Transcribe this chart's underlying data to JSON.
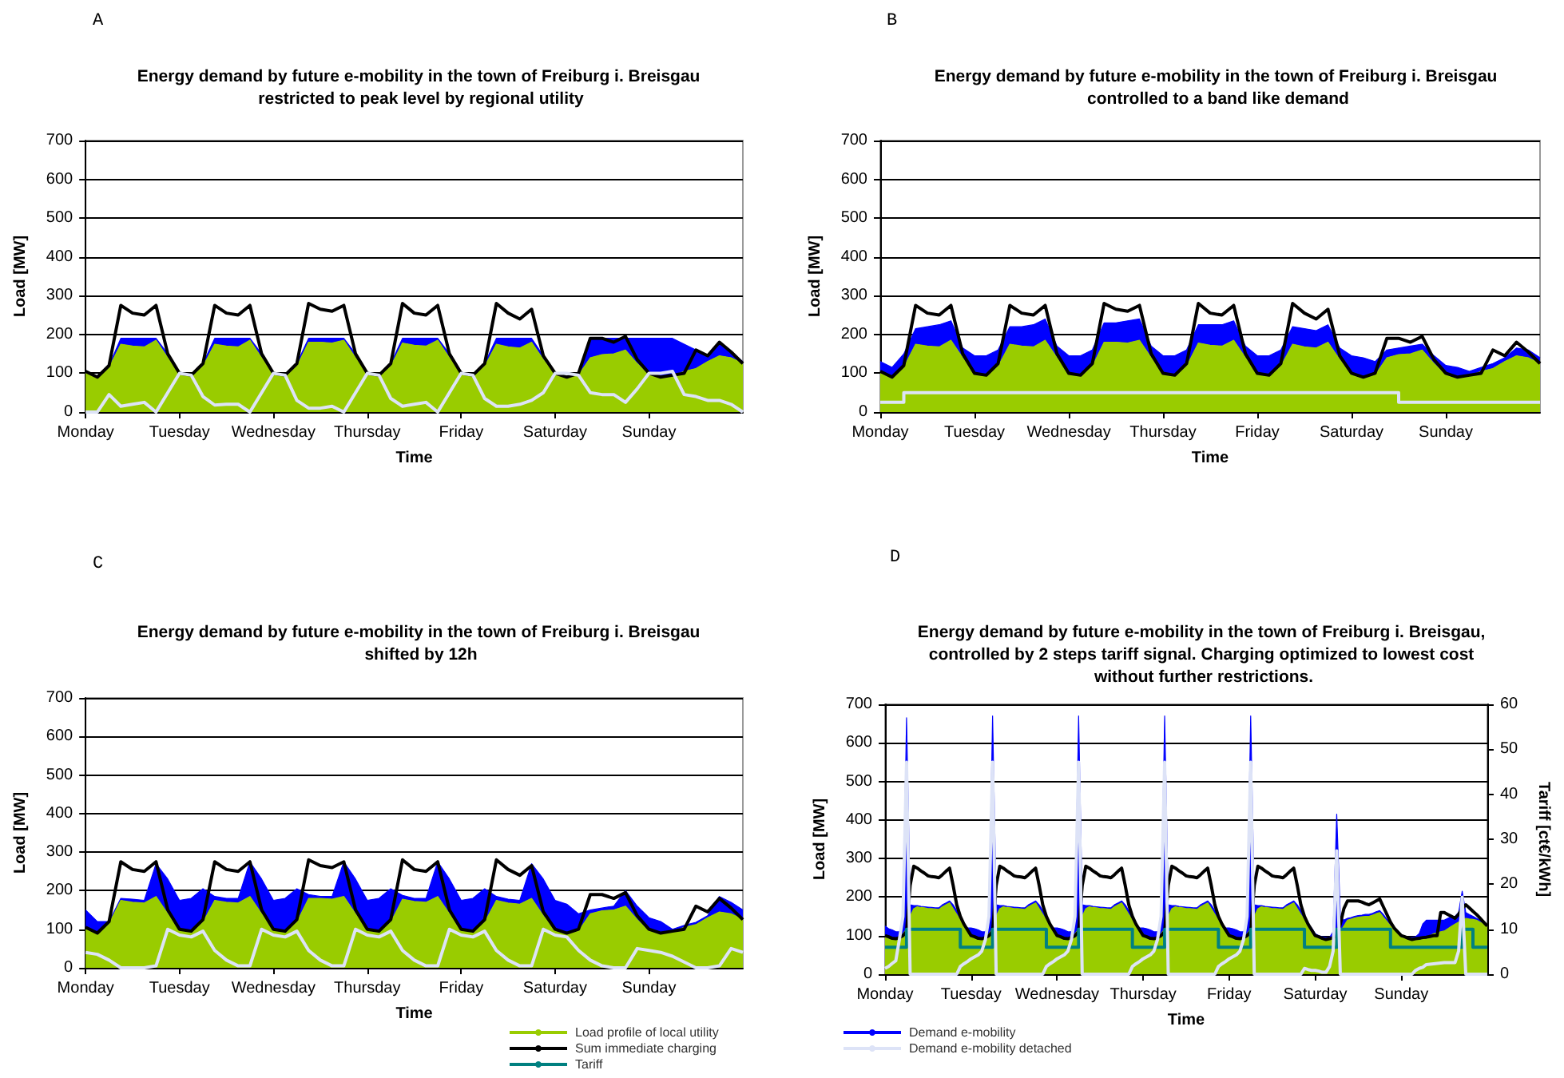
{
  "chart_data": [
    {
      "type": "area",
      "title": "Energy demand by future e-mobility in the town of Freiburg i. Breisgau restricted to peak level by regional utility",
      "xlabel": "Time",
      "ylabel": "Load [MW]",
      "annotations": [
        "A"
      ],
      "stacked": true,
      "grid": "y",
      "marker": "none",
      "ylim": [
        0,
        700
      ],
      "yticks": [
        0,
        100,
        200,
        300,
        400,
        500,
        600,
        700
      ],
      "categories": [
        "Monday",
        null,
        null,
        null,
        null,
        null,
        null,
        null,
        "Tuesday",
        null,
        null,
        null,
        null,
        null,
        null,
        null,
        "Wednesday",
        null,
        null,
        null,
        null,
        null,
        null,
        null,
        "Thursday",
        null,
        null,
        null,
        null,
        null,
        null,
        null,
        "Friday",
        null,
        null,
        null,
        null,
        null,
        null,
        null,
        "Saturday",
        null,
        null,
        null,
        null,
        null,
        null,
        null,
        "Sunday",
        null,
        null,
        null,
        null,
        null,
        null,
        null,
        null
      ],
      "series": [
        {
          "color": "#99cc00",
          "values": [
            100,
            90,
            115,
            175,
            170,
            168,
            185,
            140,
            100,
            92,
            118,
            175,
            170,
            168,
            185,
            140,
            100,
            92,
            118,
            180,
            180,
            178,
            185,
            140,
            100,
            92,
            118,
            178,
            172,
            170,
            185,
            140,
            100,
            92,
            118,
            175,
            168,
            165,
            180,
            135,
            98,
            90,
            95,
            140,
            148,
            150,
            160,
            125,
            95,
            90,
            92,
            105,
            112,
            130,
            145,
            140,
            125
          ]
        },
        {
          "type": "area",
          "color": "#0000ff",
          "values": [
            0,
            0,
            5,
            15,
            20,
            22,
            5,
            10,
            0,
            3,
            7,
            15,
            20,
            22,
            5,
            10,
            0,
            3,
            7,
            10,
            10,
            12,
            5,
            10,
            0,
            3,
            7,
            12,
            18,
            20,
            5,
            10,
            0,
            3,
            7,
            15,
            22,
            25,
            10,
            10,
            2,
            0,
            5,
            50,
            42,
            40,
            30,
            65,
            95,
            100,
            98,
            70,
            48,
            15,
            35,
            15,
            5
          ]
        },
        {
          "type": "line",
          "color": "#000000",
          "values": [
            105,
            90,
            120,
            275,
            255,
            250,
            275,
            150,
            100,
            95,
            125,
            275,
            255,
            250,
            275,
            150,
            100,
            95,
            125,
            280,
            265,
            260,
            275,
            150,
            100,
            95,
            125,
            280,
            255,
            250,
            275,
            150,
            100,
            95,
            125,
            280,
            255,
            240,
            265,
            145,
            100,
            90,
            100,
            190,
            190,
            180,
            195,
            135,
            100,
            90,
            95,
            100,
            160,
            145,
            180,
            155,
            125
          ]
        },
        {
          "type": "line",
          "color": "#dde3f7",
          "values": [
            0,
            0,
            45,
            15,
            20,
            25,
            0,
            50,
            100,
            95,
            40,
            18,
            20,
            20,
            0,
            50,
            100,
            95,
            30,
            10,
            10,
            15,
            0,
            50,
            100,
            95,
            35,
            15,
            20,
            25,
            0,
            50,
            100,
            95,
            35,
            15,
            15,
            20,
            30,
            50,
            100,
            100,
            95,
            50,
            45,
            45,
            25,
            60,
            100,
            100,
            105,
            45,
            40,
            30,
            30,
            20,
            0
          ]
        }
      ]
    },
    {
      "type": "area",
      "title": "Energy demand by future e-mobility in the town of Freiburg i. Breisgau controlled to a band like demand",
      "xlabel": "Time",
      "ylabel": "Load [MW]",
      "annotations": [
        "B"
      ],
      "stacked": true,
      "grid": "y",
      "marker": "none",
      "ylim": [
        0,
        700
      ],
      "yticks": [
        0,
        100,
        200,
        300,
        400,
        500,
        600,
        700
      ],
      "categories": [
        "Monday",
        null,
        null,
        null,
        null,
        null,
        null,
        null,
        "Tuesday",
        null,
        null,
        null,
        null,
        null,
        null,
        null,
        "Wednesday",
        null,
        null,
        null,
        null,
        null,
        null,
        null,
        "Thursday",
        null,
        null,
        null,
        null,
        null,
        null,
        null,
        "Friday",
        null,
        null,
        null,
        null,
        null,
        null,
        null,
        "Saturday",
        null,
        null,
        null,
        null,
        null,
        null,
        null,
        "Sunday",
        null,
        null,
        null,
        null,
        null,
        null,
        null,
        null
      ],
      "series": [
        {
          "color": "#99cc00",
          "values": [
            100,
            90,
            115,
            175,
            170,
            168,
            185,
            140,
            100,
            92,
            118,
            175,
            170,
            168,
            185,
            140,
            100,
            92,
            118,
            180,
            180,
            178,
            185,
            140,
            100,
            92,
            118,
            178,
            172,
            170,
            185,
            140,
            100,
            92,
            118,
            175,
            168,
            165,
            180,
            135,
            98,
            90,
            95,
            140,
            148,
            150,
            160,
            125,
            95,
            90,
            92,
            105,
            112,
            130,
            145,
            140,
            125
          ]
        },
        {
          "type": "area",
          "color": "#0000ff",
          "values": [
            30,
            25,
            35,
            40,
            50,
            57,
            50,
            25,
            45,
            53,
            42,
            45,
            50,
            57,
            55,
            30,
            45,
            53,
            42,
            50,
            50,
            57,
            55,
            30,
            45,
            53,
            42,
            47,
            53,
            55,
            50,
            30,
            45,
            53,
            42,
            45,
            47,
            45,
            45,
            30,
            47,
            50,
            35,
            20,
            17,
            20,
            15,
            20,
            25,
            25,
            13,
            10,
            13,
            10,
            20,
            20,
            15
          ]
        },
        {
          "type": "line",
          "color": "#000000",
          "values": [
            105,
            90,
            120,
            275,
            255,
            250,
            275,
            150,
            100,
            95,
            125,
            275,
            255,
            250,
            275,
            150,
            100,
            95,
            125,
            280,
            265,
            260,
            275,
            150,
            100,
            95,
            125,
            280,
            255,
            250,
            275,
            150,
            100,
            95,
            125,
            280,
            255,
            240,
            265,
            145,
            100,
            90,
            100,
            190,
            190,
            180,
            195,
            135,
            100,
            90,
            95,
            100,
            160,
            145,
            180,
            155,
            125
          ]
        },
        {
          "type": "step",
          "color": "#dde3f7",
          "values": [
            25,
            25,
            50,
            50,
            50,
            50,
            50,
            50,
            50,
            50,
            50,
            50,
            50,
            50,
            50,
            50,
            50,
            50,
            50,
            50,
            50,
            50,
            50,
            50,
            50,
            50,
            50,
            50,
            50,
            50,
            50,
            50,
            50,
            50,
            50,
            50,
            50,
            50,
            50,
            50,
            50,
            50,
            50,
            50,
            25,
            25,
            25,
            25,
            25,
            25,
            25,
            25,
            25,
            25,
            25,
            25,
            25
          ]
        }
      ]
    },
    {
      "type": "area",
      "title": "Energy demand by future e-mobility in the town of Freiburg i. Breisgau shifted by 12h",
      "xlabel": "Time",
      "ylabel": "Load [MW]",
      "annotations": [
        "C"
      ],
      "stacked": true,
      "grid": "y",
      "marker": "none",
      "ylim": [
        0,
        700
      ],
      "yticks": [
        0,
        100,
        200,
        300,
        400,
        500,
        600,
        700
      ],
      "categories": [
        "Monday",
        null,
        null,
        null,
        null,
        null,
        null,
        null,
        "Tuesday",
        null,
        null,
        null,
        null,
        null,
        null,
        null,
        "Wednesday",
        null,
        null,
        null,
        null,
        null,
        null,
        null,
        "Thursday",
        null,
        null,
        null,
        null,
        null,
        null,
        null,
        "Friday",
        null,
        null,
        null,
        null,
        null,
        null,
        null,
        "Saturday",
        null,
        null,
        null,
        null,
        null,
        null,
        null,
        "Sunday",
        null,
        null,
        null,
        null,
        null,
        null,
        null,
        null
      ],
      "series": [
        {
          "color": "#99cc00",
          "values": [
            100,
            90,
            115,
            175,
            170,
            168,
            185,
            140,
            100,
            92,
            118,
            175,
            170,
            168,
            185,
            140,
            100,
            92,
            118,
            180,
            180,
            178,
            185,
            140,
            100,
            92,
            118,
            178,
            172,
            170,
            185,
            140,
            100,
            92,
            118,
            175,
            168,
            165,
            180,
            135,
            98,
            90,
            95,
            140,
            148,
            150,
            160,
            125,
            95,
            90,
            92,
            105,
            112,
            130,
            145,
            140,
            125
          ]
        },
        {
          "type": "area",
          "color": "#0000ff",
          "values": [
            50,
            30,
            5,
            5,
            8,
            7,
            85,
            90,
            75,
            88,
            87,
            10,
            10,
            12,
            90,
            90,
            75,
            88,
            87,
            10,
            5,
            7,
            90,
            90,
            75,
            88,
            87,
            10,
            8,
            10,
            90,
            90,
            75,
            88,
            87,
            10,
            10,
            10,
            90,
            95,
            77,
            75,
            45,
            10,
            7,
            10,
            40,
            35,
            35,
            30,
            8,
            5,
            6,
            5,
            40,
            30,
            25
          ]
        },
        {
          "type": "line",
          "color": "#000000",
          "values": [
            105,
            90,
            120,
            275,
            255,
            250,
            275,
            150,
            100,
            95,
            125,
            275,
            255,
            250,
            275,
            150,
            100,
            95,
            125,
            280,
            265,
            260,
            275,
            150,
            100,
            95,
            125,
            280,
            255,
            250,
            275,
            150,
            100,
            95,
            125,
            280,
            255,
            240,
            265,
            145,
            100,
            90,
            100,
            190,
            190,
            180,
            195,
            135,
            100,
            90,
            95,
            100,
            160,
            145,
            180,
            155,
            125
          ]
        },
        {
          "type": "line",
          "color": "#dde3f7",
          "values": [
            40,
            35,
            20,
            0,
            0,
            0,
            5,
            100,
            85,
            80,
            95,
            45,
            20,
            5,
            5,
            100,
            85,
            80,
            95,
            45,
            20,
            5,
            5,
            100,
            85,
            80,
            95,
            45,
            20,
            5,
            5,
            100,
            85,
            80,
            95,
            45,
            20,
            5,
            5,
            100,
            85,
            80,
            45,
            20,
            5,
            0,
            0,
            50,
            45,
            40,
            30,
            15,
            0,
            0,
            5,
            50,
            40
          ]
        }
      ]
    },
    {
      "type": "area",
      "title": "Energy demand by future e-mobility in the town of Freiburg i. Breisgau, controlled by 2 steps tariff signal. Charging optimized to lowest cost without further restrictions.",
      "xlabel": "Time",
      "ylabel": "Load [MW]",
      "y2label": "Tariff [ct€/kWh]",
      "annotations": [
        "D"
      ],
      "grid": "y",
      "marker": "none",
      "legend": "bottom",
      "ylim": [
        0,
        700
      ],
      "yticks": [
        0,
        100,
        200,
        300,
        400,
        500,
        600,
        700
      ],
      "y2lim": [
        0,
        60
      ],
      "y2ticks": [
        0,
        10,
        20,
        30,
        40,
        50,
        60
      ],
      "categories": [
        "Monday",
        null,
        null,
        null,
        null,
        null,
        null,
        null,
        null,
        null,
        null,
        null,
        null,
        null,
        null,
        null,
        null,
        null,
        null,
        null,
        null,
        null,
        null,
        null,
        "Tuesday",
        null,
        null,
        null,
        null,
        null,
        null,
        null,
        null,
        null,
        null,
        null,
        null,
        null,
        null,
        null,
        null,
        null,
        null,
        null,
        null,
        null,
        null,
        null,
        "Wednesday",
        null,
        null,
        null,
        null,
        null,
        null,
        null,
        null,
        null,
        null,
        null,
        null,
        null,
        null,
        null,
        null,
        null,
        null,
        null,
        null,
        null,
        null,
        null,
        "Thursday",
        null,
        null,
        null,
        null,
        null,
        null,
        null,
        null,
        null,
        null,
        null,
        null,
        null,
        null,
        null,
        null,
        null,
        null,
        null,
        null,
        null,
        null,
        null,
        "Friday",
        null,
        null,
        null,
        null,
        null,
        null,
        null,
        null,
        null,
        null,
        null,
        null,
        null,
        null,
        null,
        null,
        null,
        null,
        null,
        null,
        null,
        null,
        null,
        "Saturday",
        null,
        null,
        null,
        null,
        null,
        null,
        null,
        null,
        null,
        null,
        null,
        null,
        null,
        null,
        null,
        null,
        null,
        null,
        null,
        null,
        null,
        null,
        null,
        "Sunday",
        null,
        null,
        null,
        null,
        null,
        null,
        null,
        null,
        null,
        null,
        null,
        null,
        null,
        null,
        null,
        null,
        null,
        null,
        null,
        null,
        null,
        null,
        null,
        null
      ],
      "series": [
        {
          "name": "Load profile of local utility",
          "color": "#99cc00",
          "values": [
            100,
            97,
            93,
            91,
            95,
            105,
            117,
            150,
            170,
            175,
            173,
            172,
            170,
            170,
            169,
            168,
            175,
            180,
            185,
            170,
            155,
            140,
            127,
            113,
            100,
            97,
            93,
            91,
            95,
            105,
            117,
            150,
            170,
            175,
            173,
            172,
            170,
            170,
            169,
            168,
            175,
            180,
            185,
            170,
            155,
            140,
            127,
            113,
            100,
            97,
            93,
            91,
            95,
            105,
            117,
            150,
            170,
            175,
            173,
            172,
            170,
            170,
            169,
            168,
            175,
            180,
            185,
            170,
            155,
            140,
            127,
            113,
            100,
            97,
            93,
            91,
            95,
            105,
            117,
            150,
            170,
            175,
            173,
            172,
            170,
            170,
            169,
            168,
            175,
            180,
            185,
            170,
            155,
            140,
            127,
            113,
            100,
            97,
            93,
            91,
            95,
            105,
            117,
            150,
            170,
            175,
            173,
            172,
            170,
            170,
            169,
            168,
            175,
            180,
            185,
            170,
            155,
            140,
            127,
            113,
            98,
            95,
            93,
            90,
            92,
            93,
            95,
            110,
            125,
            140,
            143,
            146,
            148,
            149,
            150,
            150,
            153,
            157,
            160,
            148,
            137,
            125,
            115,
            105,
            95,
            93,
            92,
            90,
            91,
            91,
            92,
            96,
            100,
            105,
            107,
            110,
            112,
            118,
            124,
            130,
            135,
            140,
            145,
            143,
            142,
            140,
            135,
            130,
            125
          ]
        },
        {
          "name": "Sum immediate charging",
          "type": "line",
          "color": "#000000",
          "values": [
            100,
            97,
            93,
            92,
            95,
            100,
            110,
            230,
            280,
            275,
            268,
            262,
            255,
            253,
            252,
            250,
            258,
            267,
            275,
            230,
            180,
            150,
            130,
            115,
            100,
            97,
            93,
            92,
            95,
            100,
            110,
            230,
            280,
            275,
            268,
            262,
            255,
            253,
            252,
            250,
            258,
            267,
            275,
            230,
            180,
            150,
            130,
            115,
            100,
            97,
            93,
            92,
            95,
            100,
            110,
            230,
            280,
            275,
            268,
            262,
            255,
            253,
            252,
            250,
            258,
            267,
            275,
            230,
            180,
            150,
            130,
            115,
            100,
            97,
            93,
            92,
            95,
            100,
            110,
            230,
            280,
            275,
            268,
            262,
            255,
            253,
            252,
            250,
            258,
            267,
            275,
            230,
            180,
            150,
            130,
            115,
            100,
            97,
            93,
            92,
            95,
            100,
            110,
            230,
            280,
            275,
            268,
            262,
            255,
            253,
            252,
            250,
            258,
            267,
            275,
            230,
            180,
            150,
            130,
            115,
            100,
            97,
            93,
            90,
            92,
            95,
            100,
            130,
            170,
            190,
            190,
            190,
            190,
            187,
            183,
            180,
            185,
            190,
            195,
            175,
            155,
            135,
            120,
            110,
            100,
            97,
            93,
            90,
            92,
            93,
            95,
            96,
            98,
            100,
            100,
            160,
            160,
            155,
            150,
            145,
            155,
            170,
            180,
            172,
            163,
            155,
            145,
            135,
            125
          ]
        },
        {
          "name": "Tariff",
          "type": "step",
          "axis": "y2",
          "color": "#008080",
          "values": [
            6,
            6,
            6,
            6,
            6,
            6,
            10,
            10,
            10,
            10,
            10,
            10,
            10,
            10,
            10,
            10,
            10,
            10,
            10,
            10,
            10,
            6,
            6,
            6,
            6,
            6,
            6,
            6,
            6,
            6,
            10,
            10,
            10,
            10,
            10,
            10,
            10,
            10,
            10,
            10,
            10,
            10,
            10,
            10,
            10,
            6,
            6,
            6,
            6,
            6,
            6,
            6,
            6,
            6,
            10,
            10,
            10,
            10,
            10,
            10,
            10,
            10,
            10,
            10,
            10,
            10,
            10,
            10,
            10,
            6,
            6,
            6,
            6,
            6,
            6,
            6,
            6,
            6,
            10,
            10,
            10,
            10,
            10,
            10,
            10,
            10,
            10,
            10,
            10,
            10,
            10,
            10,
            10,
            6,
            6,
            6,
            6,
            6,
            6,
            6,
            6,
            6,
            10,
            10,
            10,
            10,
            10,
            10,
            10,
            10,
            10,
            10,
            10,
            10,
            10,
            10,
            10,
            6,
            6,
            6,
            6,
            6,
            6,
            6,
            6,
            6,
            10,
            10,
            10,
            10,
            10,
            10,
            10,
            10,
            10,
            10,
            10,
            10,
            10,
            10,
            10,
            6,
            6,
            6,
            6,
            6,
            6,
            6,
            6,
            6,
            6,
            6,
            6,
            6,
            6,
            6,
            6,
            6,
            6,
            6,
            6,
            10,
            10,
            10,
            6,
            6,
            6,
            6,
            6
          ]
        },
        {
          "name": "Demand e-mobility",
          "type": "area",
          "color": "#0000ff",
          "values": [
            125,
            118,
            115,
            110,
            110,
            130,
            665,
            180,
            178,
            178,
            176,
            175,
            174,
            173,
            172,
            172,
            180,
            185,
            190,
            180,
            165,
            150,
            130,
            120,
            120,
            118,
            115,
            110,
            110,
            130,
            670,
            180,
            178,
            178,
            176,
            175,
            174,
            173,
            172,
            172,
            180,
            185,
            190,
            180,
            165,
            150,
            130,
            120,
            120,
            118,
            115,
            110,
            110,
            130,
            670,
            180,
            178,
            178,
            176,
            175,
            174,
            173,
            172,
            172,
            180,
            185,
            190,
            180,
            165,
            150,
            130,
            120,
            120,
            118,
            115,
            110,
            110,
            130,
            670,
            180,
            178,
            178,
            176,
            175,
            174,
            173,
            172,
            172,
            180,
            185,
            190,
            180,
            165,
            150,
            130,
            120,
            120,
            118,
            115,
            110,
            110,
            130,
            670,
            180,
            178,
            178,
            176,
            175,
            174,
            173,
            172,
            172,
            180,
            185,
            190,
            180,
            165,
            150,
            130,
            120,
            105,
            100,
            97,
            95,
            95,
            110,
            415,
            150,
            140,
            145,
            147,
            150,
            152,
            153,
            155,
            155,
            158,
            162,
            165,
            155,
            142,
            130,
            118,
            108,
            100,
            97,
            95,
            95,
            97,
            105,
            130,
            140,
            140,
            140,
            140,
            140,
            140,
            145,
            150,
            150,
            160,
            215,
            160,
            155,
            150,
            145,
            140,
            133,
            125
          ]
        },
        {
          "name": "Demand e-mobility detached",
          "type": "line",
          "color": "#dde3f7",
          "values": [
            15,
            20,
            28,
            35,
            90,
            150,
            550,
            0,
            0,
            0,
            0,
            0,
            0,
            0,
            0,
            0,
            0,
            0,
            0,
            0,
            0,
            20,
            27,
            33,
            40,
            45,
            50,
            60,
            90,
            150,
            550,
            0,
            0,
            0,
            0,
            0,
            0,
            0,
            0,
            0,
            0,
            0,
            0,
            0,
            0,
            20,
            27,
            33,
            40,
            45,
            50,
            60,
            90,
            150,
            550,
            0,
            0,
            0,
            0,
            0,
            0,
            0,
            0,
            0,
            0,
            0,
            0,
            0,
            0,
            20,
            27,
            33,
            40,
            45,
            50,
            60,
            90,
            150,
            550,
            0,
            0,
            0,
            0,
            0,
            0,
            0,
            0,
            0,
            0,
            0,
            0,
            0,
            0,
            20,
            27,
            33,
            40,
            45,
            50,
            60,
            90,
            150,
            550,
            0,
            0,
            0,
            0,
            0,
            0,
            0,
            0,
            0,
            0,
            0,
            0,
            0,
            0,
            15,
            12,
            10,
            10,
            8,
            5,
            5,
            20,
            60,
            320,
            0,
            0,
            0,
            0,
            0,
            0,
            0,
            0,
            0,
            0,
            0,
            0,
            0,
            0,
            0,
            0,
            0,
            0,
            0,
            0,
            0,
            10,
            15,
            18,
            25,
            26,
            27,
            28,
            29,
            30,
            30,
            30,
            30,
            60,
            200,
            0,
            0,
            0,
            0,
            0,
            0,
            0
          ]
        }
      ]
    }
  ]
}
